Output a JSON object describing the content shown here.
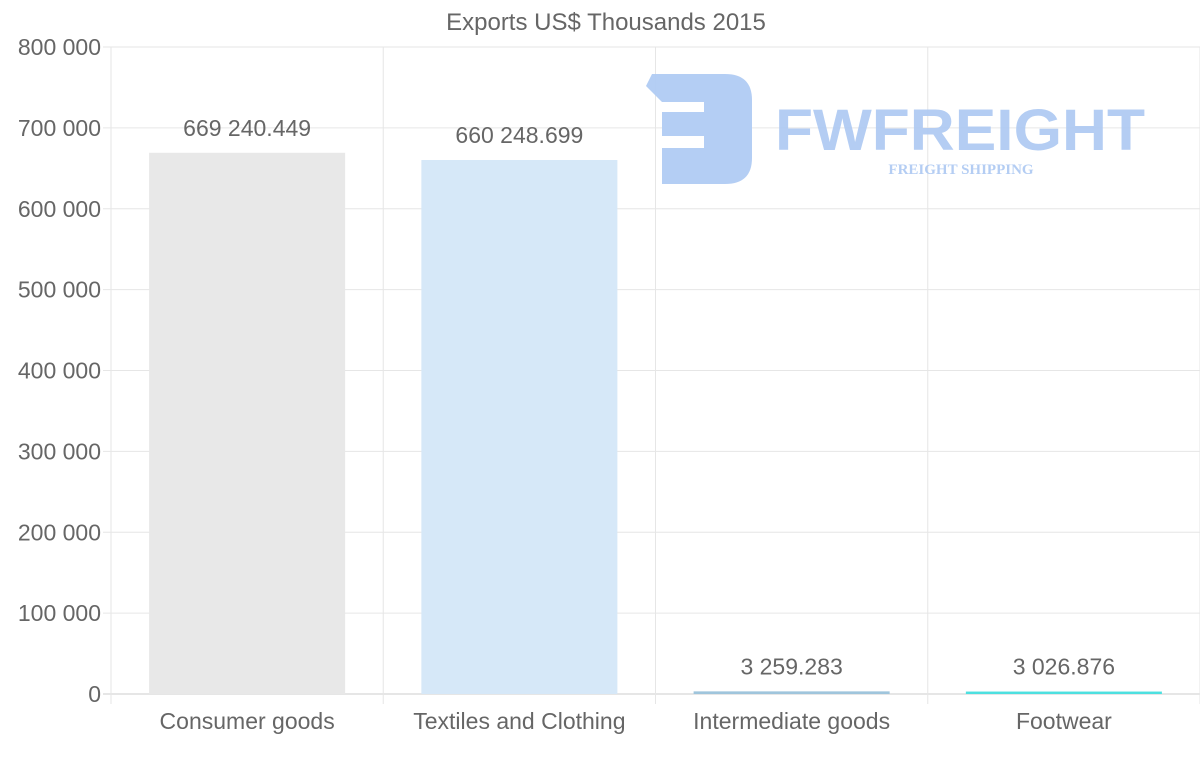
{
  "chart_data": {
    "type": "bar",
    "title": "Exports US$ Thousands 2015",
    "xlabel": "",
    "ylabel": "",
    "categories": [
      "Consumer goods",
      "Textiles and Clothing",
      "Intermediate goods",
      "Footwear"
    ],
    "values": [
      669240.449,
      660248.699,
      3259.283,
      3026.876
    ],
    "value_labels": [
      "669 240.449",
      "660 248.699",
      "3 259.283",
      "3 026.876"
    ],
    "bar_colors": [
      "#e8e8e8",
      "#d6e8f8",
      "#9fc5dc",
      "#4de0e0"
    ],
    "ylim": [
      0,
      800000
    ],
    "yticks": [
      0,
      100000,
      200000,
      300000,
      400000,
      500000,
      600000,
      700000,
      800000
    ],
    "ytick_labels": [
      "0",
      "100 000",
      "200 000",
      "300 000",
      "400 000",
      "500 000",
      "600 000",
      "700 000",
      "800 000"
    ],
    "grid": true,
    "legend": "none"
  },
  "watermark": {
    "brand": "FWFREIGHT",
    "tagline": "FREIGHT SHIPPING",
    "color": "#a9c6f2"
  }
}
